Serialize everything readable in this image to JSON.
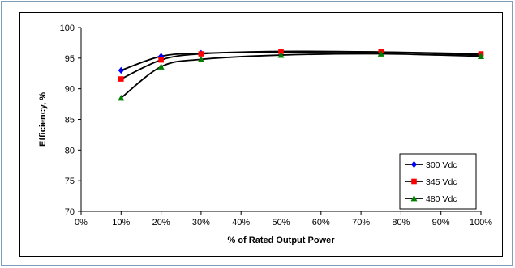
{
  "chart_data": {
    "type": "line",
    "title": "",
    "xlabel": "% of Rated Output Power",
    "ylabel": "Efficiency, %",
    "xlim": [
      0,
      100
    ],
    "ylim": [
      70,
      100
    ],
    "x_ticks": [
      "0%",
      "10%",
      "20%",
      "30%",
      "40%",
      "50%",
      "60%",
      "70%",
      "80%",
      "90%",
      "100%"
    ],
    "y_ticks": [
      "70",
      "75",
      "80",
      "85",
      "90",
      "95",
      "100"
    ],
    "x_tick_values": [
      0,
      10,
      20,
      30,
      40,
      50,
      60,
      70,
      80,
      90,
      100
    ],
    "y_tick_values": [
      70,
      75,
      80,
      85,
      90,
      95,
      100
    ],
    "grid": false,
    "legend_position": "bottom-right",
    "series": [
      {
        "name": "300 Vdc",
        "color": "#0000ff",
        "marker": "diamond",
        "x": [
          10,
          20,
          30,
          50,
          75,
          100
        ],
        "y": [
          93.0,
          95.3,
          95.8,
          96.0,
          96.0,
          95.5
        ]
      },
      {
        "name": "345 Vdc",
        "color": "#ff0000",
        "marker": "square",
        "x": [
          10,
          20,
          30,
          50,
          75,
          100
        ],
        "y": [
          91.6,
          94.7,
          95.7,
          96.1,
          96.0,
          95.7
        ]
      },
      {
        "name": "480 Vdc",
        "color": "#008000",
        "marker": "triangle",
        "x": [
          10,
          20,
          30,
          50,
          75,
          100
        ],
        "y": [
          88.5,
          93.6,
          94.8,
          95.5,
          95.7,
          95.3
        ]
      }
    ]
  }
}
